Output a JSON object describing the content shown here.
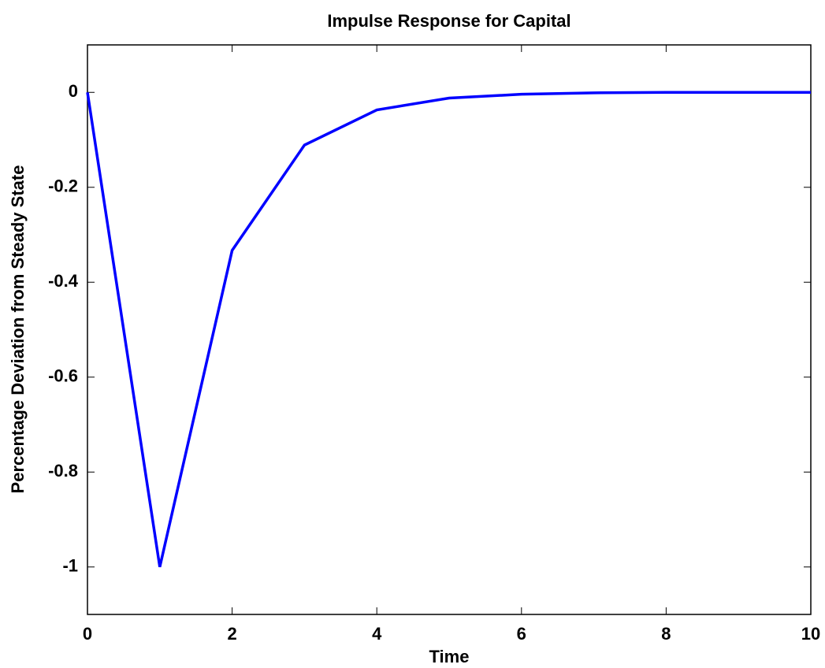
{
  "chart_data": {
    "type": "line",
    "title": "Impulse Response for Capital",
    "x_label": "Time",
    "y_label": "Percentage Deviation from Steady State",
    "x": [
      0,
      1,
      2,
      3,
      4,
      5,
      6,
      7,
      8,
      9,
      10
    ],
    "series": [
      {
        "color": "#0000ff",
        "values": [
          0,
          -1,
          -0.333,
          -0.111,
          -0.037,
          -0.012,
          -0.004,
          -0.001,
          0,
          0,
          0
        ]
      }
    ],
    "xlim": [
      0,
      10
    ],
    "xticks": [
      0,
      2,
      4,
      6,
      8,
      10
    ],
    "ylim": [
      -1.1,
      0.1
    ],
    "yticks": [
      -1,
      -0.8,
      -0.6,
      -0.4,
      -0.2,
      0
    ],
    "grid": false
  }
}
